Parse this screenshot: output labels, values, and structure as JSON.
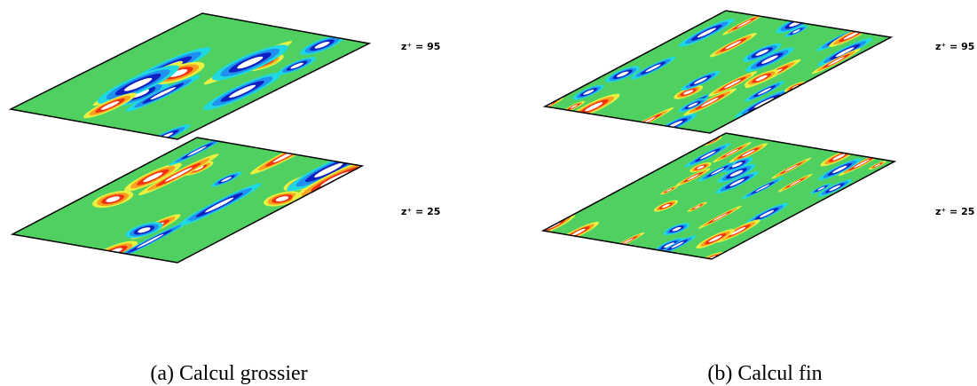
{
  "figure": {
    "panels": [
      {
        "caption": "(a) Calcul grossier",
        "planes": [
          {
            "label": "z⁺ = 95"
          },
          {
            "label": "z⁺ = 25"
          }
        ]
      },
      {
        "caption": "(b) Calcul fin",
        "planes": [
          {
            "label": "z⁺ = 95"
          },
          {
            "label": "z⁺ = 25"
          }
        ]
      }
    ]
  }
}
